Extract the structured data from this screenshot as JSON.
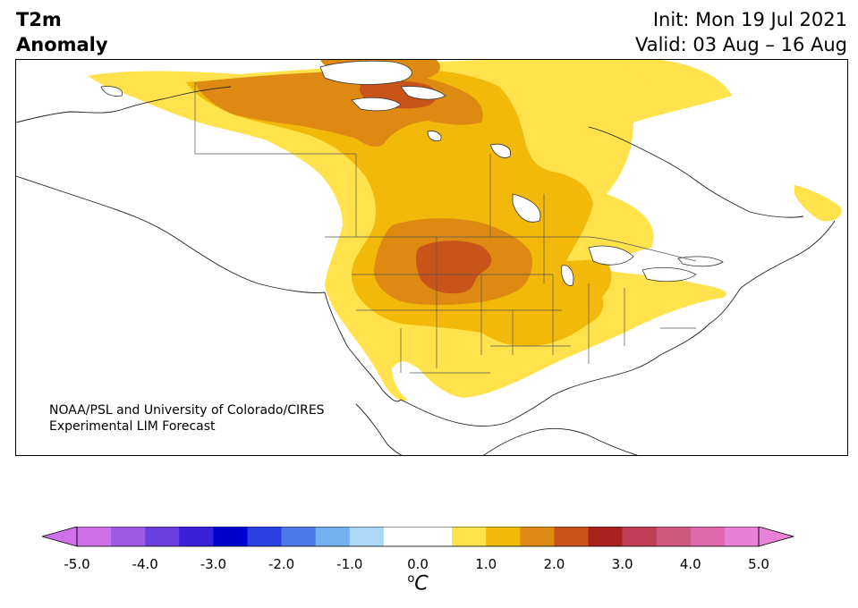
{
  "header": {
    "variable_line1": "T2m",
    "variable_line2": "Anomaly",
    "init": "Init: Mon 19 Jul 2021",
    "valid": "Valid: 03 Aug – 16 Aug"
  },
  "credit": {
    "line1": "NOAA/PSL and University of Colorado/CIRES",
    "line2": "Experimental LIM Forecast"
  },
  "colorbar": {
    "unit_base": "C",
    "unit_sup": "o",
    "ticks": [
      "-5.0",
      "-4.0",
      "-3.0",
      "-2.0",
      "-1.0",
      "0.0",
      "1.0",
      "2.0",
      "3.0",
      "4.0",
      "5.0"
    ],
    "range": [
      -5.0,
      5.0
    ],
    "step": 0.5,
    "colors": [
      "#d070e8",
      "#9e5ae4",
      "#6a3fe0",
      "#3a1fd8",
      "#0000d0",
      "#2a40e0",
      "#4d7ae8",
      "#74b0f0",
      "#acd8f8",
      "#ffffff",
      "#ffffff",
      "#ffe24c",
      "#f2b90a",
      "#de8a12",
      "#c8541a",
      "#a8231e",
      "#bf3e56",
      "#d0587e",
      "#de68aa",
      "#e880d8"
    ],
    "extend_low_color": "#d070e8",
    "extend_high_color": "#e880d8"
  },
  "map": {
    "projection": "lambert-conformal North America",
    "anomaly_levels": [
      {
        "name": "0.5-1.0",
        "color": "#ffe24c"
      },
      {
        "name": "1.0-1.5",
        "color": "#f2b90a"
      },
      {
        "name": "1.5-2.0",
        "color": "#de8a12"
      },
      {
        "name": "2.0-2.5",
        "color": "#c8541a"
      }
    ]
  }
}
